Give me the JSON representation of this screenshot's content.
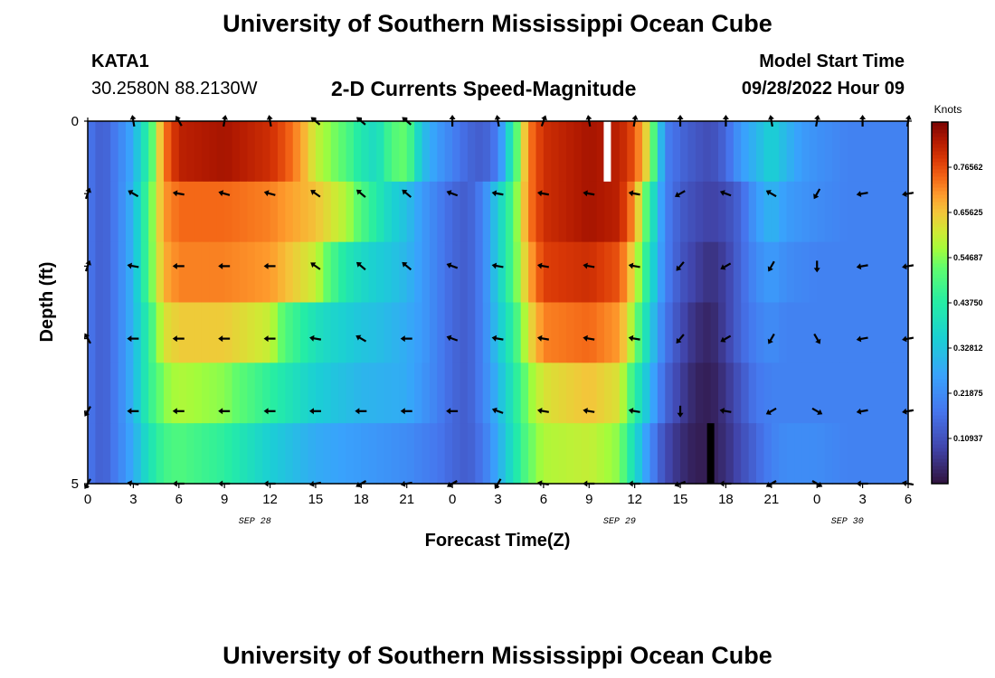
{
  "header": {
    "title": "University of Southern Mississippi Ocean Cube",
    "station": "KATA1",
    "coords": "30.2580N  88.2130W",
    "plot_title": "2-D Currents Speed-Magnitude",
    "model_label": "Model Start Time",
    "model_time": "09/28/2022 Hour 09"
  },
  "footer": {
    "title2": "University of Southern Mississippi Ocean Cube"
  },
  "chart_data": {
    "type": "heatmap",
    "title": "2-D Currents Speed-Magnitude",
    "xlabel": "Forecast Time(Z)",
    "ylabel": "Depth (ft)",
    "x_tick_labels": [
      "0",
      "3",
      "6",
      "9",
      "12",
      "15",
      "18",
      "21",
      "0",
      "3",
      "6",
      "9",
      "12",
      "15",
      "18",
      "21",
      "0",
      "3",
      "6"
    ],
    "date_labels": [
      {
        "text": "SEP 28",
        "hour": 11
      },
      {
        "text": "SEP 29",
        "hour": 35
      },
      {
        "text": "SEP 30",
        "hour": 50
      }
    ],
    "y_tick_labels": [
      "0",
      "5"
    ],
    "xlim": [
      0,
      54
    ],
    "ylim": [
      0,
      5
    ],
    "colorbar": {
      "label": "Knots",
      "vmin": 0.0,
      "vmax": 0.875,
      "tick_labels": [
        "0.10937",
        "0.21875",
        "0.32812",
        "0.43750",
        "0.54687",
        "0.65625",
        "0.76562"
      ],
      "tick_values": [
        0.10937,
        0.21875,
        0.32812,
        0.4375,
        0.54687,
        0.65625,
        0.76562
      ]
    },
    "speed_profiles": [
      {
        "name": "layer 1",
        "control_hours": [
          0,
          1,
          2,
          3,
          3.5,
          4,
          5,
          6,
          9,
          12,
          13,
          14,
          15,
          16,
          17,
          18,
          19,
          20,
          21,
          22,
          23,
          24,
          25,
          26,
          27,
          27.5,
          28,
          29,
          30,
          33,
          35,
          36,
          37,
          37.5,
          38,
          39,
          40,
          41,
          42,
          43,
          44,
          45,
          46,
          47,
          48,
          50,
          54
        ],
        "control_speeds": [
          0.18,
          0.13,
          0.2,
          0.28,
          0.38,
          0.45,
          0.72,
          0.82,
          0.84,
          0.8,
          0.76,
          0.7,
          0.6,
          0.55,
          0.5,
          0.42,
          0.38,
          0.5,
          0.53,
          0.32,
          0.25,
          0.2,
          0.15,
          0.13,
          0.19,
          0.32,
          0.45,
          0.72,
          0.8,
          0.84,
          0.82,
          0.76,
          0.6,
          0.4,
          0.2,
          0.15,
          0.12,
          0.1,
          0.15,
          0.25,
          0.3,
          0.36,
          0.3,
          0.25,
          0.23,
          0.2,
          0.2
        ]
      },
      {
        "name": "layer 2",
        "control_hours": [
          0,
          1,
          2,
          3,
          4,
          5,
          6,
          9,
          12,
          15,
          16,
          17,
          18,
          19,
          20,
          21,
          22,
          23,
          24,
          25,
          26,
          27,
          28,
          29,
          30,
          33,
          35,
          36,
          37,
          38,
          39,
          40,
          41,
          42,
          43,
          44,
          45,
          46,
          48,
          50,
          54
        ],
        "control_speeds": [
          0.18,
          0.13,
          0.2,
          0.3,
          0.5,
          0.7,
          0.74,
          0.74,
          0.72,
          0.66,
          0.62,
          0.58,
          0.5,
          0.43,
          0.36,
          0.32,
          0.25,
          0.2,
          0.15,
          0.13,
          0.2,
          0.35,
          0.5,
          0.72,
          0.8,
          0.84,
          0.82,
          0.7,
          0.45,
          0.2,
          0.13,
          0.1,
          0.08,
          0.1,
          0.15,
          0.25,
          0.3,
          0.25,
          0.22,
          0.2,
          0.2
        ]
      },
      {
        "name": "layer 3",
        "control_hours": [
          0,
          1,
          2,
          3,
          4,
          5,
          6,
          9,
          12,
          15,
          16,
          17,
          18,
          19,
          20,
          21,
          22,
          23,
          24,
          25,
          26,
          27,
          28,
          29,
          30,
          33,
          35,
          36,
          37,
          38,
          39,
          40,
          41,
          42,
          43,
          44,
          45,
          46,
          48,
          50,
          54
        ],
        "control_speeds": [
          0.18,
          0.13,
          0.2,
          0.3,
          0.5,
          0.68,
          0.72,
          0.72,
          0.7,
          0.6,
          0.5,
          0.42,
          0.38,
          0.35,
          0.33,
          0.3,
          0.25,
          0.2,
          0.15,
          0.13,
          0.2,
          0.35,
          0.5,
          0.68,
          0.78,
          0.8,
          0.76,
          0.62,
          0.4,
          0.2,
          0.12,
          0.08,
          0.05,
          0.08,
          0.15,
          0.22,
          0.25,
          0.22,
          0.2,
          0.2,
          0.2
        ]
      },
      {
        "name": "layer 4",
        "control_hours": [
          0,
          1,
          2,
          3,
          4,
          5,
          6,
          9,
          12,
          13,
          14,
          15,
          16,
          17,
          18,
          19,
          20,
          21,
          22,
          23,
          24,
          25,
          26,
          27,
          28,
          29,
          30,
          33,
          35,
          36,
          37,
          38,
          39,
          40,
          41,
          42,
          43,
          44,
          45,
          46,
          48,
          50,
          54
        ],
        "control_speeds": [
          0.18,
          0.13,
          0.2,
          0.3,
          0.45,
          0.62,
          0.65,
          0.65,
          0.6,
          0.5,
          0.45,
          0.4,
          0.37,
          0.35,
          0.33,
          0.32,
          0.3,
          0.28,
          0.25,
          0.2,
          0.15,
          0.13,
          0.2,
          0.33,
          0.45,
          0.62,
          0.72,
          0.74,
          0.7,
          0.55,
          0.35,
          0.18,
          0.1,
          0.05,
          0.03,
          0.08,
          0.15,
          0.2,
          0.22,
          0.2,
          0.2,
          0.2,
          0.2
        ]
      },
      {
        "name": "layer 5",
        "control_hours": [
          0,
          1,
          2,
          3,
          4,
          5,
          6,
          9,
          12,
          15,
          18,
          21,
          22,
          23,
          24,
          25,
          26,
          27,
          28,
          29,
          30,
          33,
          35,
          36,
          37,
          38,
          39,
          40,
          41,
          42,
          43,
          44,
          45,
          46,
          48,
          50,
          54
        ],
        "control_speeds": [
          0.18,
          0.13,
          0.2,
          0.3,
          0.45,
          0.55,
          0.58,
          0.55,
          0.45,
          0.35,
          0.3,
          0.28,
          0.24,
          0.2,
          0.15,
          0.13,
          0.2,
          0.3,
          0.42,
          0.55,
          0.62,
          0.66,
          0.62,
          0.45,
          0.3,
          0.15,
          0.08,
          0.03,
          0.02,
          0.06,
          0.12,
          0.18,
          0.2,
          0.2,
          0.2,
          0.2,
          0.2
        ]
      },
      {
        "name": "layer 6",
        "control_hours": [
          0,
          1,
          2,
          3,
          4,
          5,
          6,
          9,
          12,
          15,
          18,
          21,
          22,
          23,
          24,
          25,
          26,
          27,
          28,
          29,
          30,
          33,
          35,
          36,
          37,
          38,
          39,
          40,
          41,
          42,
          43,
          44,
          45,
          46,
          48,
          50,
          54
        ],
        "control_speeds": [
          0.18,
          0.13,
          0.2,
          0.28,
          0.4,
          0.48,
          0.5,
          0.45,
          0.35,
          0.28,
          0.25,
          0.22,
          0.2,
          0.18,
          0.15,
          0.13,
          0.18,
          0.28,
          0.4,
          0.52,
          0.58,
          0.6,
          0.55,
          0.38,
          0.22,
          0.1,
          0.05,
          0.02,
          0.02,
          0.05,
          0.1,
          0.15,
          0.2,
          0.22,
          0.22,
          0.2,
          0.2
        ]
      }
    ],
    "markers": [
      {
        "hour": 34.2,
        "layer": 1,
        "color": "#ffffff"
      },
      {
        "hour": 41,
        "layer": 6,
        "color": "#000000"
      }
    ],
    "arrow_hours": [
      0,
      3,
      6,
      9,
      12,
      15,
      18,
      21,
      24,
      27,
      30,
      33,
      36,
      39,
      42,
      45,
      48,
      51,
      54
    ],
    "arrow_rows": [
      {
        "depth": 0,
        "angles": [
          null,
          80,
          60,
          100,
          80,
          40,
          40,
          40,
          90,
          80,
          110,
          80,
          100,
          90,
          90,
          80,
          100,
          90,
          100
        ]
      },
      {
        "depth": 1,
        "angles": [
          110,
          30,
          10,
          15,
          15,
          35,
          40,
          40,
          20,
          10,
          10,
          10,
          10,
          330,
          20,
          30,
          300,
          350,
          350
        ]
      },
      {
        "depth": 2,
        "angles": [
          110,
          10,
          0,
          0,
          0,
          35,
          40,
          40,
          20,
          10,
          10,
          10,
          10,
          310,
          330,
          300,
          270,
          350,
          350
        ]
      },
      {
        "depth": 3,
        "angles": [
          60,
          0,
          0,
          0,
          0,
          10,
          30,
          0,
          20,
          10,
          10,
          10,
          10,
          310,
          330,
          300,
          240,
          350,
          350
        ]
      },
      {
        "depth": 4,
        "angles": [
          300,
          0,
          0,
          0,
          0,
          0,
          0,
          0,
          0,
          20,
          10,
          10,
          10,
          270,
          10,
          330,
          210,
          350,
          350
        ]
      },
      {
        "depth": 5,
        "angles": [
          300,
          10,
          0,
          0,
          0,
          350,
          330,
          350,
          330,
          300,
          10,
          0,
          0,
          340,
          0,
          330,
          210,
          0,
          10
        ]
      }
    ]
  }
}
